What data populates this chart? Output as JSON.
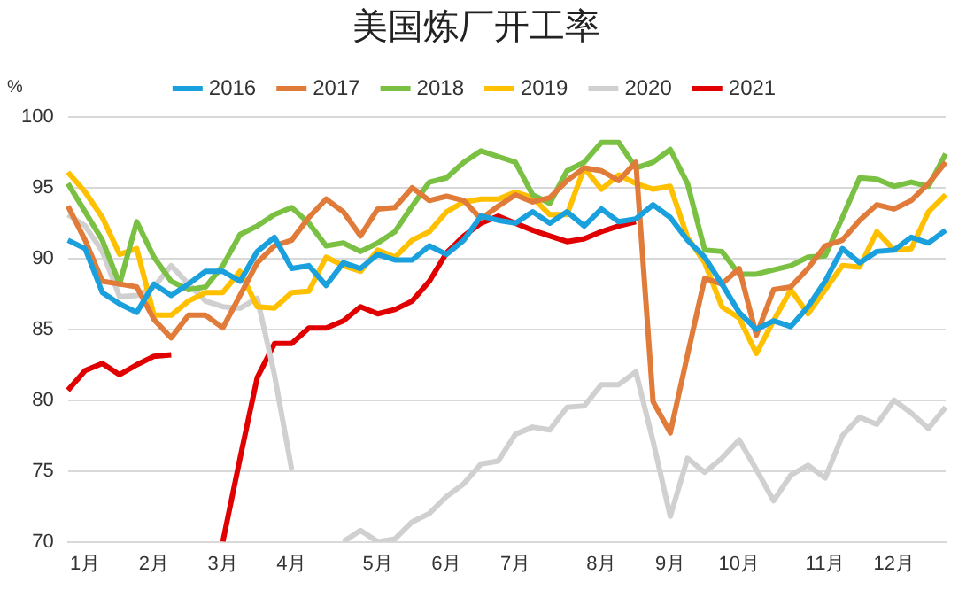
{
  "chart_data": {
    "type": "line",
    "title": "美国炼厂开工率",
    "ylabel": "%",
    "categories": [
      null,
      "1月",
      null,
      null,
      null,
      "2月",
      null,
      null,
      null,
      "3月",
      null,
      null,
      null,
      "4月",
      null,
      null,
      null,
      null,
      "5月",
      null,
      null,
      null,
      "6月",
      null,
      null,
      null,
      "7月",
      null,
      null,
      null,
      null,
      "8月",
      null,
      null,
      null,
      "9月",
      null,
      null,
      null,
      "10月",
      null,
      null,
      null,
      null,
      "11月",
      null,
      null,
      null,
      "12月",
      null,
      null,
      null
    ],
    "series": [
      {
        "name": "2016",
        "color": "#1aa0dc",
        "values": [
          91.3,
          90.7,
          87.6,
          86.8,
          86.2,
          88.2,
          87.4,
          88.2,
          89.1,
          89.1,
          88.4,
          90.5,
          91.5,
          89.3,
          89.5,
          88.1,
          89.7,
          89.3,
          90.3,
          89.9,
          89.9,
          90.9,
          90.3,
          91.3,
          93.0,
          92.7,
          92.5,
          93.3,
          92.5,
          93.3,
          92.3,
          93.5,
          92.6,
          92.8,
          93.8,
          92.9,
          91.3,
          90.1,
          88.2,
          86.2,
          85.0,
          85.6,
          85.2,
          86.6,
          88.4,
          90.7,
          89.7,
          90.5,
          90.6,
          91.5,
          91.1,
          92.0
        ]
      },
      {
        "name": "2017",
        "color": "#e07b39",
        "values": [
          93.7,
          91.3,
          88.4,
          88.2,
          88.0,
          85.7,
          84.4,
          86.0,
          86.0,
          85.1,
          87.4,
          89.7,
          90.9,
          91.3,
          92.9,
          94.2,
          93.3,
          91.6,
          93.5,
          93.6,
          95.0,
          94.1,
          94.4,
          94.1,
          92.8,
          93.7,
          94.5,
          94.0,
          94.3,
          95.5,
          96.4,
          96.2,
          95.5,
          96.8,
          79.9,
          77.7,
          83.2,
          88.6,
          88.2,
          89.3,
          84.6,
          87.8,
          88.0,
          89.3,
          90.9,
          91.3,
          92.7,
          93.8,
          93.5,
          94.1,
          95.3,
          96.8
        ]
      },
      {
        "name": "2018",
        "color": "#7ac143",
        "values": [
          95.3,
          93.3,
          91.3,
          88.2,
          92.6,
          90.1,
          88.4,
          87.8,
          88.0,
          89.5,
          91.7,
          92.3,
          93.1,
          93.6,
          92.5,
          90.9,
          91.1,
          90.5,
          91.1,
          91.9,
          93.7,
          95.4,
          95.7,
          96.8,
          97.6,
          97.2,
          96.8,
          94.5,
          93.9,
          96.2,
          96.8,
          98.2,
          98.2,
          96.4,
          96.8,
          97.7,
          95.3,
          90.6,
          90.5,
          88.9,
          88.9,
          89.2,
          89.5,
          90.1,
          90.2,
          92.9,
          95.7,
          95.6,
          95.1,
          95.4,
          95.1,
          97.4
        ]
      },
      {
        "name": "2019",
        "color": "#ffc000",
        "values": [
          96.1,
          94.7,
          92.9,
          90.3,
          90.7,
          86.0,
          86.0,
          87.0,
          87.6,
          87.6,
          89.1,
          86.6,
          86.5,
          87.6,
          87.7,
          90.1,
          89.5,
          89.1,
          90.6,
          90.1,
          91.3,
          91.9,
          93.3,
          94.0,
          94.2,
          94.2,
          94.7,
          94.3,
          93.1,
          93.1,
          96.4,
          94.9,
          95.9,
          95.3,
          94.9,
          95.1,
          91.5,
          89.7,
          86.6,
          85.8,
          83.3,
          85.6,
          87.8,
          86.1,
          87.8,
          89.5,
          89.4,
          91.9,
          90.6,
          90.7,
          93.3,
          94.5
        ]
      },
      {
        "name": "2020",
        "color": "#d0d0d0",
        "values": [
          93.1,
          92.3,
          90.5,
          87.3,
          87.4,
          88.0,
          89.5,
          88.2,
          87.0,
          86.6,
          86.5,
          87.2,
          81.8,
          75.1,
          null,
          null,
          70.0,
          70.8,
          70.0,
          70.2,
          71.4,
          72.0,
          73.2,
          74.1,
          75.5,
          75.7,
          77.6,
          78.1,
          77.9,
          79.5,
          79.6,
          81.1,
          81.1,
          82.0,
          77.1,
          71.8,
          75.9,
          74.9,
          75.9,
          77.2,
          75.1,
          72.9,
          74.7,
          75.4,
          74.5,
          77.5,
          78.8,
          78.3,
          80.0,
          79.1,
          78.0,
          79.5
        ]
      },
      {
        "name": "2021",
        "color": "#e00000",
        "values": [
          80.7,
          82.1,
          82.6,
          81.8,
          82.5,
          83.1,
          83.2,
          null,
          null,
          70.0,
          75.9,
          81.6,
          84.0,
          84.0,
          85.1,
          85.1,
          85.6,
          86.6,
          86.1,
          86.4,
          87.0,
          88.4,
          90.4,
          91.6,
          92.5,
          93.0,
          92.5,
          92.0,
          91.6,
          91.2,
          91.4,
          91.9,
          92.3,
          92.6,
          null,
          null,
          null,
          null,
          null,
          null,
          null,
          null,
          null,
          null,
          null,
          null,
          null,
          null,
          null,
          null,
          null,
          null
        ]
      }
    ],
    "ylim": [
      70,
      100
    ],
    "yticks": [
      70,
      75,
      80,
      85,
      90,
      95,
      100
    ],
    "grid": "y",
    "legend": "top",
    "marker": "none",
    "line_style": "solid"
  }
}
